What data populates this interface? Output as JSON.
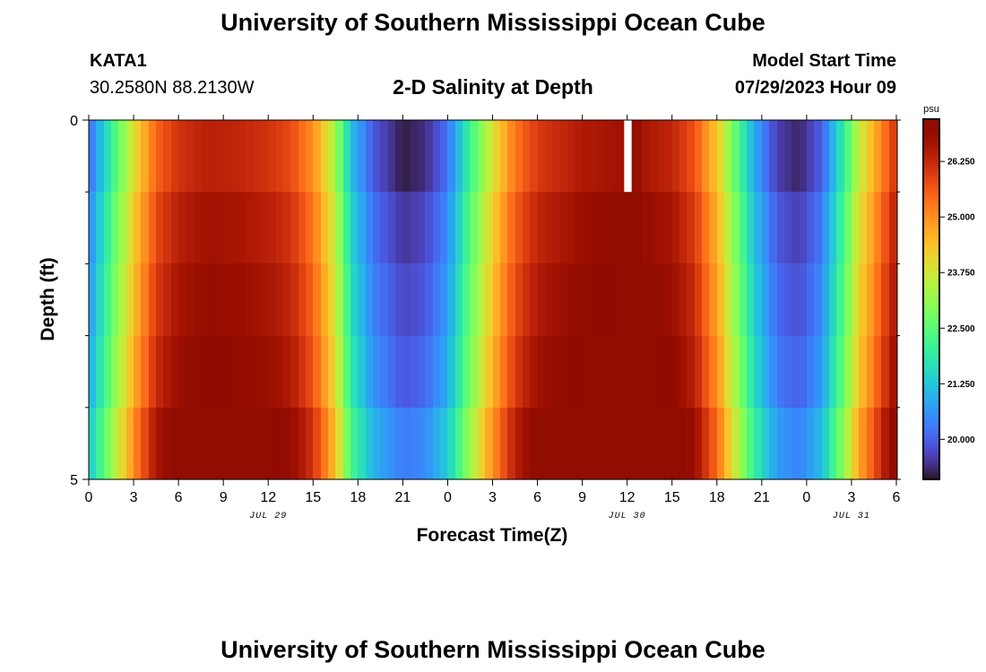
{
  "header": {
    "title": "University of Southern Mississippi Ocean Cube",
    "station": "KATA1",
    "coords": "30.2580N  88.2130W",
    "subtitle": "2-D Salinity at Depth",
    "model_label": "Model Start Time",
    "model_time": "07/29/2023 Hour 09"
  },
  "footer": {
    "title": "University of Southern Mississippi Ocean Cube"
  },
  "chart_data": {
    "type": "heatmap",
    "title": "2-D Salinity at Depth",
    "xlabel": "Forecast Time(Z)",
    "ylabel": "Depth (ft)",
    "x_tick_labels": [
      "0",
      "3",
      "6",
      "9",
      "12",
      "15",
      "18",
      "21",
      "0",
      "3",
      "6",
      "9",
      "12",
      "15",
      "18",
      "21",
      "0",
      "3",
      "6"
    ],
    "x_tick_hours": [
      0,
      3,
      6,
      9,
      12,
      15,
      18,
      21,
      24,
      27,
      30,
      33,
      36,
      39,
      42,
      45,
      48,
      51,
      54
    ],
    "date_labels": [
      {
        "label": "JUL 29",
        "hour": 12
      },
      {
        "label": "JUL 30",
        "hour": 36
      },
      {
        "label": "JUL 31",
        "hour": 51
      }
    ],
    "x_range_hours": [
      0,
      54
    ],
    "y_range_ft": [
      0,
      5
    ],
    "y_tick_labels": [
      "0",
      "5"
    ],
    "y_minor_ticks_ft": [
      1,
      2,
      3,
      4
    ],
    "colorbar": {
      "units": "psu",
      "tick_labels": [
        "20.000",
        "21.250",
        "22.500",
        "23.750",
        "25.000",
        "26.250"
      ],
      "tick_values": [
        20.0,
        21.25,
        22.5,
        23.75,
        25.0,
        26.25
      ],
      "range": [
        19.1,
        27.2
      ]
    },
    "depth_layers": 5,
    "salinity_psu_keyframes": [
      {
        "hour": 0,
        "value": 20.4
      },
      {
        "hour": 1.5,
        "value": 22.3
      },
      {
        "hour": 3,
        "value": 24.2
      },
      {
        "hour": 4.5,
        "value": 25.8
      },
      {
        "hour": 6,
        "value": 26.4
      },
      {
        "hour": 8,
        "value": 26.7
      },
      {
        "hour": 10,
        "value": 26.6
      },
      {
        "hour": 12,
        "value": 26.4
      },
      {
        "hour": 13.5,
        "value": 26.1
      },
      {
        "hour": 15,
        "value": 25.3
      },
      {
        "hour": 16.5,
        "value": 23.6
      },
      {
        "hour": 17.5,
        "value": 21.5
      },
      {
        "hour": 19,
        "value": 20.2
      },
      {
        "hour": 21,
        "value": 19.5
      },
      {
        "hour": 22.5,
        "value": 19.7
      },
      {
        "hour": 24,
        "value": 20.5
      },
      {
        "hour": 25.5,
        "value": 22.4
      },
      {
        "hour": 27,
        "value": 24.2
      },
      {
        "hour": 28.5,
        "value": 25.6
      },
      {
        "hour": 30,
        "value": 26.3
      },
      {
        "hour": 33,
        "value": 26.8
      },
      {
        "hour": 35.8,
        "value": 27.0
      },
      {
        "hour": 36,
        "value": 27.2
      },
      {
        "hour": 36.7,
        "value": 27.2
      },
      {
        "hour": 37,
        "value": 26.9
      },
      {
        "hour": 39,
        "value": 26.6
      },
      {
        "hour": 40.5,
        "value": 26.0
      },
      {
        "hour": 42,
        "value": 24.6
      },
      {
        "hour": 43,
        "value": 23.2
      },
      {
        "hour": 44.5,
        "value": 21.2
      },
      {
        "hour": 46,
        "value": 19.9
      },
      {
        "hour": 47.5,
        "value": 19.6
      },
      {
        "hour": 49,
        "value": 20.3
      },
      {
        "hour": 50.5,
        "value": 22.3
      },
      {
        "hour": 51.5,
        "value": 23.9
      },
      {
        "hour": 53,
        "value": 25.4
      },
      {
        "hour": 54,
        "value": 26.5
      }
    ],
    "depth_adjust_psu_by_layer": [
      -0.3,
      0.0,
      0.2,
      0.4,
      0.8
    ],
    "missing_cells": [
      {
        "hour_start": 35.8,
        "hour_end": 36.3,
        "layer": 0
      }
    ]
  }
}
